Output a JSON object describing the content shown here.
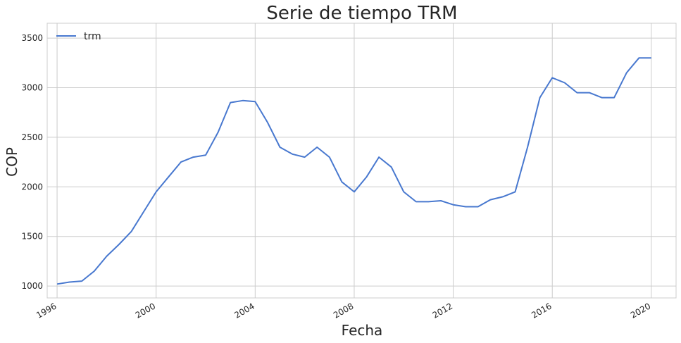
{
  "chart_data": {
    "type": "line",
    "title": "Serie de tiempo TRM",
    "xlabel": "Fecha",
    "ylabel": "COP",
    "xlim": [
      1995.6,
      2021.0
    ],
    "ylim": [
      880,
      3650
    ],
    "x_ticks": [
      1996,
      2000,
      2004,
      2008,
      2012,
      2016,
      2020
    ],
    "x_tick_labels": [
      "1996",
      "2000",
      "2004",
      "2008",
      "2012",
      "2016",
      "2020"
    ],
    "y_ticks": [
      1000,
      1500,
      2000,
      2500,
      3000,
      3500
    ],
    "y_tick_labels": [
      "1000",
      "1500",
      "2000",
      "2500",
      "3000",
      "3500"
    ],
    "grid": true,
    "legend_position": "top-left",
    "series": [
      {
        "name": "trm",
        "color": "#4878cf",
        "x": [
          1996.0,
          1996.5,
          1997.0,
          1997.5,
          1998.0,
          1998.5,
          1999.0,
          1999.5,
          2000.0,
          2000.5,
          2001.0,
          2001.5,
          2002.0,
          2002.5,
          2003.0,
          2003.5,
          2004.0,
          2004.5,
          2005.0,
          2005.5,
          2006.0,
          2006.5,
          2007.0,
          2007.5,
          2008.0,
          2008.5,
          2009.0,
          2009.5,
          2010.0,
          2010.5,
          2011.0,
          2011.5,
          2012.0,
          2012.5,
          2013.0,
          2013.5,
          2014.0,
          2014.5,
          2015.0,
          2015.5,
          2016.0,
          2016.5,
          2017.0,
          2017.5,
          2018.0,
          2018.5,
          2019.0,
          2019.5,
          2020.0
        ],
        "y": [
          1020,
          1040,
          1050,
          1150,
          1300,
          1420,
          1550,
          1750,
          1950,
          2100,
          2250,
          2300,
          2320,
          2550,
          2850,
          2870,
          2860,
          2650,
          2400,
          2330,
          2300,
          2400,
          2300,
          2050,
          1950,
          2100,
          2300,
          2200,
          1950,
          1850,
          1850,
          1860,
          1820,
          1800,
          1800,
          1870,
          1900,
          1950,
          2400,
          2900,
          3100,
          3050,
          2950,
          2950,
          2900,
          2900,
          3150,
          3300,
          3300
        ]
      }
    ]
  }
}
